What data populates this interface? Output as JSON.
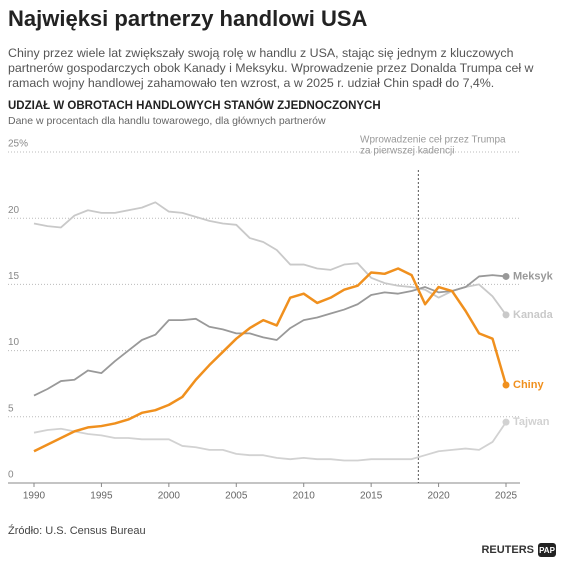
{
  "title": "Najwięksi partnerzy handlowi USA",
  "lead": "Chiny przez wiele lat zwiększały swoją rolę w handlu z USA, stając się jednym z kluczowych partnerów gospodarczych obok Kanady i Meksyku. Wprowadzenie przez Donalda Trumpa ceł w ramach wojny handlowej zahamowało ten wzrost, a w 2025 r. udział Chin spadł do 7,4%.",
  "source": "Źródło: U.S. Census Bureau",
  "logos": [
    "REUTERS",
    "PAP"
  ],
  "chart_data": {
    "type": "line",
    "title": "UDZIAŁ W OBROTACH HANDLOWYCH STANÓW ZJEDNOCZONYCH",
    "subtitle": "Dane w procentach dla handlu towarowego, dla głównych partnerów",
    "x": [
      1990,
      1991,
      1992,
      1993,
      1994,
      1995,
      1996,
      1997,
      1998,
      1999,
      2000,
      2001,
      2002,
      2003,
      2004,
      2005,
      2006,
      2007,
      2008,
      2009,
      2010,
      2011,
      2012,
      2013,
      2014,
      2015,
      2016,
      2017,
      2018,
      2019,
      2020,
      2021,
      2022,
      2023,
      2024,
      2025
    ],
    "xlim": [
      1989,
      2026
    ],
    "xticks": [
      1990,
      1995,
      2000,
      2005,
      2010,
      2015,
      2020,
      2025
    ],
    "ylim": [
      0,
      25
    ],
    "yticks": [
      0,
      5,
      10,
      15,
      20,
      {
        "value": 25,
        "label": "25%"
      }
    ],
    "grid": true,
    "annotation": {
      "x": 2018.5,
      "lines": [
        "Wprowadzenie ceł przez Trumpa",
        "za pierwszej kadencji"
      ]
    },
    "series": [
      {
        "name": "Kanada",
        "color": "#c9c9c9",
        "values": [
          19.6,
          19.4,
          19.3,
          20.2,
          20.6,
          20.4,
          20.4,
          20.6,
          20.8,
          21.2,
          20.5,
          20.4,
          20.1,
          19.8,
          19.6,
          19.5,
          18.5,
          18.2,
          17.6,
          16.5,
          16.5,
          16.2,
          16.1,
          16.5,
          16.6,
          15.5,
          15.1,
          14.9,
          14.8,
          14.6,
          14.0,
          14.5,
          14.8,
          15.0,
          14.1,
          12.7
        ]
      },
      {
        "name": "Tajwan",
        "color": "#d2d2d2",
        "values": [
          3.8,
          4.0,
          4.1,
          3.9,
          3.7,
          3.6,
          3.4,
          3.4,
          3.3,
          3.3,
          3.3,
          2.8,
          2.7,
          2.5,
          2.5,
          2.2,
          2.1,
          2.1,
          1.9,
          1.8,
          1.9,
          1.8,
          1.8,
          1.7,
          1.7,
          1.8,
          1.8,
          1.8,
          1.8,
          2.1,
          2.4,
          2.5,
          2.6,
          2.5,
          3.1,
          4.6
        ]
      },
      {
        "name": "Meksyk",
        "color": "#999999",
        "values": [
          6.6,
          7.1,
          7.7,
          7.8,
          8.5,
          8.3,
          9.2,
          10.0,
          10.8,
          11.2,
          12.3,
          12.3,
          12.4,
          11.8,
          11.6,
          11.3,
          11.3,
          11.0,
          10.8,
          11.7,
          12.3,
          12.5,
          12.8,
          13.1,
          13.5,
          14.2,
          14.4,
          14.3,
          14.5,
          14.8,
          14.4,
          14.5,
          14.8,
          15.6,
          15.7,
          15.6
        ]
      },
      {
        "name": "Chiny",
        "color": "#f0901e",
        "values": [
          2.4,
          2.9,
          3.4,
          3.9,
          4.2,
          4.3,
          4.5,
          4.8,
          5.3,
          5.5,
          5.9,
          6.5,
          7.8,
          8.9,
          9.9,
          10.9,
          11.7,
          12.3,
          11.9,
          14.0,
          14.3,
          13.6,
          14.0,
          14.6,
          14.9,
          15.9,
          15.8,
          16.2,
          15.7,
          13.5,
          14.8,
          14.5,
          13.0,
          11.3,
          10.9,
          7.4
        ]
      }
    ]
  }
}
